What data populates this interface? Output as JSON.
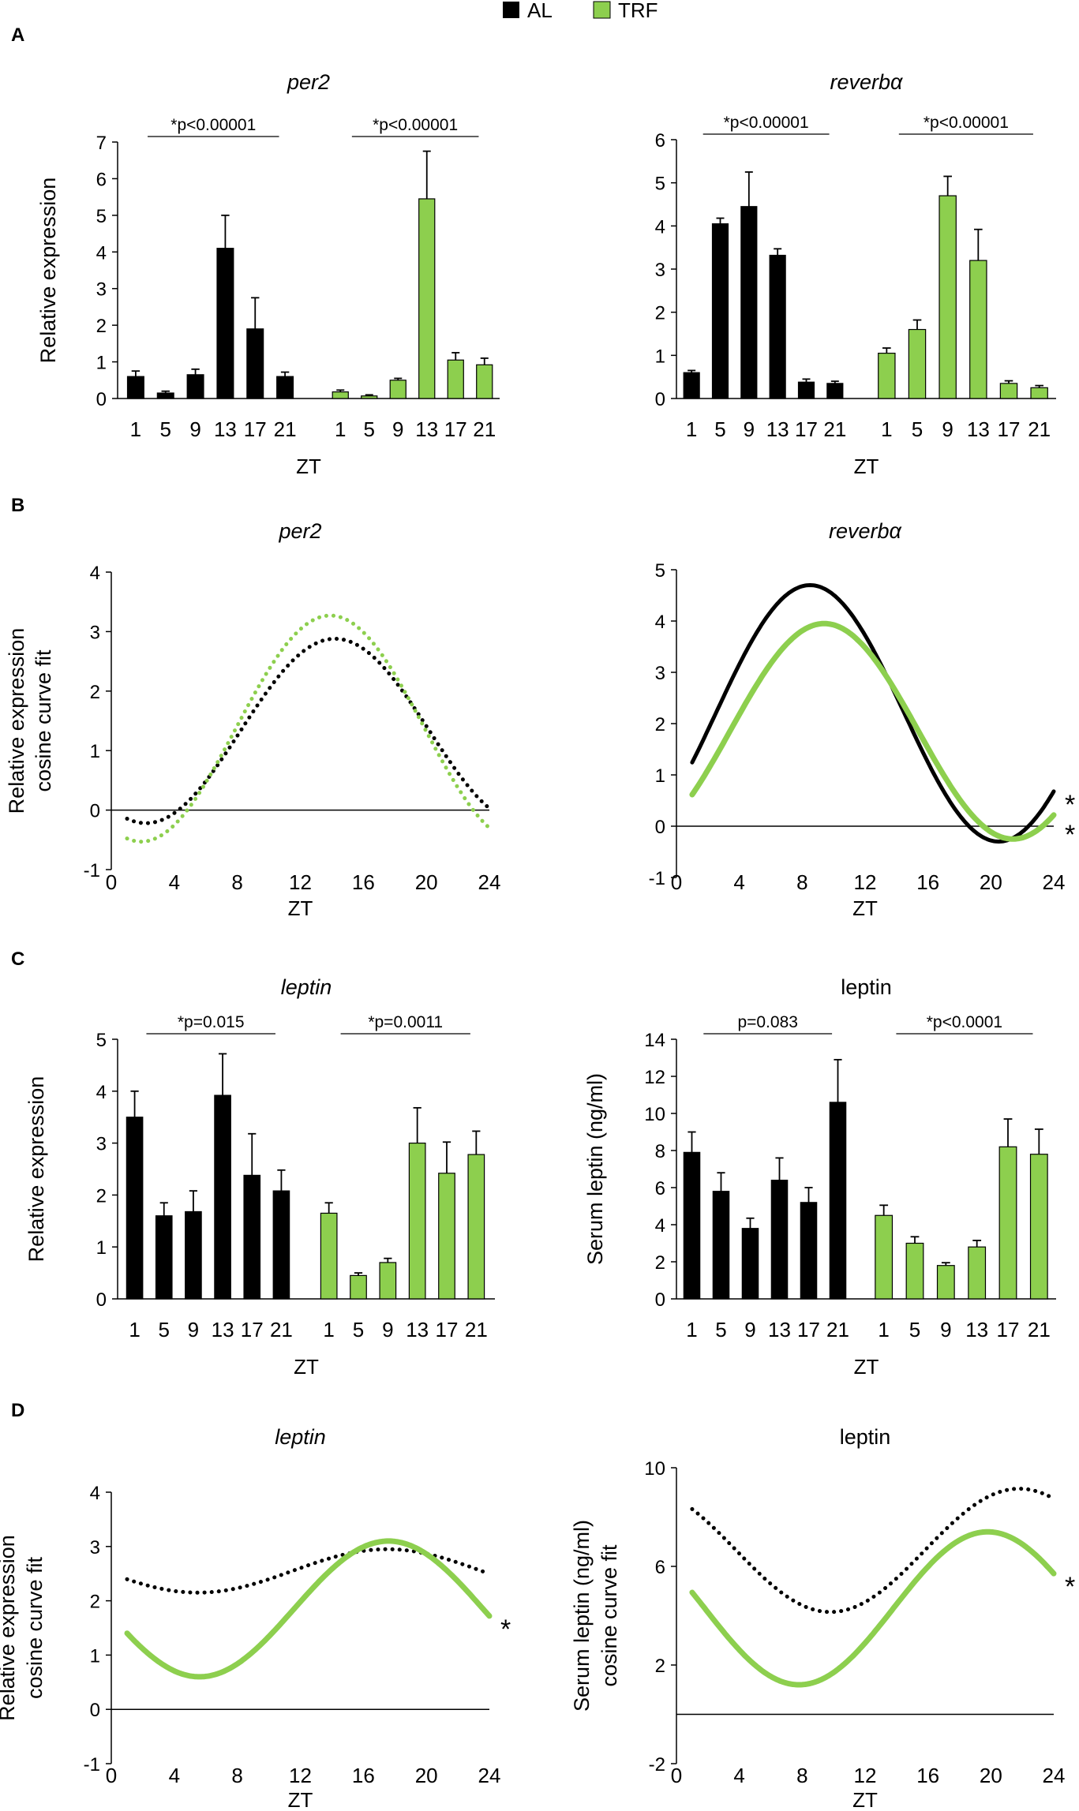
{
  "legend": {
    "items": [
      {
        "label": "AL",
        "color": "#000000"
      },
      {
        "label": "TRF",
        "color": "#8DCF4E"
      }
    ]
  },
  "colors": {
    "al": "#000000",
    "trf": "#8DCF4E",
    "axis": "#000000"
  },
  "panels": [
    {
      "id": "A",
      "label": "A"
    },
    {
      "id": "B",
      "label": "B"
    },
    {
      "id": "C",
      "label": "C"
    },
    {
      "id": "D",
      "label": "D"
    }
  ],
  "chart_data": [
    {
      "panel": "A",
      "type": "bar",
      "title": "per2",
      "title_italic": true,
      "xlabel": "ZT",
      "ylabel": [
        "Relative expression"
      ],
      "ylim": [
        0,
        7
      ],
      "yticks": [
        0,
        1,
        2,
        3,
        4,
        5,
        6,
        7
      ],
      "series": [
        {
          "name": "AL",
          "categories": [
            "1",
            "5",
            "9",
            "13",
            "17",
            "21"
          ],
          "values": [
            0.6,
            0.15,
            0.65,
            4.1,
            1.9,
            0.6
          ],
          "errors": [
            0.15,
            0.05,
            0.15,
            0.9,
            0.85,
            0.12
          ]
        },
        {
          "name": "TRF",
          "categories": [
            "1",
            "5",
            "9",
            "13",
            "17",
            "21"
          ],
          "values": [
            0.18,
            0.07,
            0.5,
            5.45,
            1.05,
            0.92
          ],
          "errors": [
            0.05,
            0.03,
            0.05,
            1.3,
            0.2,
            0.18
          ]
        }
      ],
      "significance": [
        {
          "group": "AL",
          "text": "*p<0.00001"
        },
        {
          "group": "TRF",
          "text": "*p<0.00001"
        }
      ]
    },
    {
      "panel": "A",
      "type": "bar",
      "title": "reverbα",
      "title_italic": true,
      "xlabel": "ZT",
      "ylabel": [],
      "ylim": [
        0,
        6
      ],
      "yticks": [
        0,
        1,
        2,
        3,
        4,
        5,
        6
      ],
      "series": [
        {
          "name": "AL",
          "categories": [
            "1",
            "5",
            "9",
            "13",
            "17",
            "21"
          ],
          "values": [
            0.6,
            4.05,
            4.45,
            3.32,
            0.38,
            0.35
          ],
          "errors": [
            0.05,
            0.13,
            0.8,
            0.15,
            0.07,
            0.05
          ]
        },
        {
          "name": "TRF",
          "categories": [
            "1",
            "5",
            "9",
            "13",
            "17",
            "21"
          ],
          "values": [
            1.05,
            1.6,
            4.7,
            3.2,
            0.35,
            0.25
          ],
          "errors": [
            0.12,
            0.22,
            0.45,
            0.72,
            0.06,
            0.05
          ]
        }
      ],
      "significance": [
        {
          "group": "AL",
          "text": "*p<0.00001"
        },
        {
          "group": "TRF",
          "text": "*p<0.00001"
        }
      ]
    },
    {
      "panel": "B",
      "type": "line",
      "title": "per2",
      "title_italic": true,
      "xlabel": "ZT",
      "ylabel": [
        "Relative expression",
        "cosine curve fit"
      ],
      "xlim": [
        0,
        24
      ],
      "xticks": [
        0,
        4,
        8,
        12,
        16,
        20,
        24
      ],
      "ylim": [
        -1,
        4
      ],
      "yticks": [
        -1,
        0,
        1,
        2,
        3,
        4
      ],
      "series": [
        {
          "name": "AL",
          "style": "dotted",
          "mesor": 1.33,
          "amplitude": 1.55,
          "acrophase": 14.2,
          "xrange": [
            1,
            24
          ]
        },
        {
          "name": "TRF",
          "style": "dotted",
          "mesor": 1.37,
          "amplitude": 1.9,
          "acrophase": 13.9,
          "xrange": [
            1,
            24
          ]
        }
      ],
      "markers": []
    },
    {
      "panel": "B",
      "type": "line",
      "title": "reverbα",
      "title_italic": true,
      "xlabel": "ZT",
      "ylabel": [],
      "xlim": [
        0,
        24
      ],
      "xticks": [
        0,
        4,
        8,
        12,
        16,
        20,
        24
      ],
      "ylim": [
        -1,
        5
      ],
      "yticks": [
        -1,
        0,
        1,
        2,
        3,
        4,
        5
      ],
      "series": [
        {
          "name": "AL",
          "style": "solid",
          "mesor": 2.2,
          "amplitude": 2.5,
          "acrophase": 8.5,
          "xrange": [
            1,
            24
          ]
        },
        {
          "name": "TRF",
          "style": "solid",
          "mesor": 1.85,
          "amplitude": 2.1,
          "acrophase": 9.4,
          "xrange": [
            1,
            24
          ]
        }
      ],
      "markers": [
        {
          "series": "AL",
          "text": "*"
        },
        {
          "series": "TRF",
          "text": "*"
        }
      ]
    },
    {
      "panel": "C",
      "type": "bar",
      "title": "leptin",
      "title_italic": true,
      "xlabel": "ZT",
      "ylabel": [
        "Relative expression"
      ],
      "ylim": [
        0,
        5
      ],
      "yticks": [
        0,
        1,
        2,
        3,
        4,
        5
      ],
      "series": [
        {
          "name": "AL",
          "categories": [
            "1",
            "5",
            "9",
            "13",
            "17",
            "21"
          ],
          "values": [
            3.5,
            1.6,
            1.68,
            3.92,
            2.38,
            2.08
          ],
          "errors": [
            0.5,
            0.25,
            0.4,
            0.8,
            0.8,
            0.4
          ]
        },
        {
          "name": "TRF",
          "categories": [
            "1",
            "5",
            "9",
            "13",
            "17",
            "21"
          ],
          "values": [
            1.65,
            0.45,
            0.7,
            3.0,
            2.42,
            2.78
          ],
          "errors": [
            0.2,
            0.05,
            0.08,
            0.68,
            0.6,
            0.45
          ]
        }
      ],
      "significance": [
        {
          "group": "AL",
          "text": "*p=0.015"
        },
        {
          "group": "TRF",
          "text": "*p=0.0011"
        }
      ]
    },
    {
      "panel": "C",
      "type": "bar",
      "title": "leptin",
      "title_italic": false,
      "xlabel": "ZT",
      "ylabel": [
        "Serum leptin (ng/ml)"
      ],
      "ylim": [
        0,
        14
      ],
      "yticks": [
        0,
        2,
        4,
        6,
        8,
        10,
        12,
        14
      ],
      "series": [
        {
          "name": "AL",
          "categories": [
            "1",
            "5",
            "9",
            "13",
            "17",
            "21"
          ],
          "values": [
            7.9,
            5.8,
            3.8,
            6.4,
            5.2,
            10.6
          ],
          "errors": [
            1.1,
            1.0,
            0.55,
            1.2,
            0.8,
            2.3
          ]
        },
        {
          "name": "TRF",
          "categories": [
            "1",
            "5",
            "9",
            "13",
            "17",
            "21"
          ],
          "values": [
            4.5,
            3.0,
            1.8,
            2.8,
            8.2,
            7.8
          ],
          "errors": [
            0.55,
            0.35,
            0.15,
            0.35,
            1.5,
            1.35
          ]
        }
      ],
      "significance": [
        {
          "group": "AL",
          "text": "p=0.083"
        },
        {
          "group": "TRF",
          "text": "*p<0.0001"
        }
      ]
    },
    {
      "panel": "D",
      "type": "line",
      "title": "leptin",
      "title_italic": true,
      "xlabel": "ZT",
      "ylabel": [
        "Relative expression",
        "cosine curve fit"
      ],
      "xlim": [
        0,
        24
      ],
      "xticks": [
        0,
        4,
        8,
        12,
        16,
        20,
        24
      ],
      "ylim": [
        -1,
        4
      ],
      "yticks": [
        -1,
        0,
        1,
        2,
        3,
        4
      ],
      "series": [
        {
          "name": "AL",
          "style": "dotted",
          "mesor": 2.55,
          "amplitude": 0.4,
          "acrophase": 17.5,
          "xrange": [
            1,
            24
          ]
        },
        {
          "name": "TRF",
          "style": "solid",
          "mesor": 1.85,
          "amplitude": 1.25,
          "acrophase": 17.6,
          "xrange": [
            1,
            24
          ]
        }
      ],
      "markers": [
        {
          "series": "TRF",
          "text": "*"
        }
      ]
    },
    {
      "panel": "D",
      "type": "line",
      "title": "leptin",
      "title_italic": false,
      "xlabel": "ZT",
      "ylabel": [
        "Serum leptin (ng/ml)",
        "cosine curve fit"
      ],
      "xlim": [
        0,
        24
      ],
      "xticks": [
        0,
        4,
        8,
        12,
        16,
        20,
        24
      ],
      "ylim": [
        -2,
        10
      ],
      "yticks": [
        -2,
        2,
        6,
        10
      ],
      "series": [
        {
          "name": "AL",
          "style": "dotted",
          "mesor": 6.65,
          "amplitude": 2.5,
          "acrophase": 21.8,
          "xrange": [
            1,
            24
          ]
        },
        {
          "name": "TRF",
          "style": "solid",
          "mesor": 4.3,
          "amplitude": 3.1,
          "acrophase": 19.8,
          "xrange": [
            1,
            24
          ]
        }
      ],
      "markers": [
        {
          "series": "TRF",
          "text": "*"
        }
      ]
    }
  ]
}
